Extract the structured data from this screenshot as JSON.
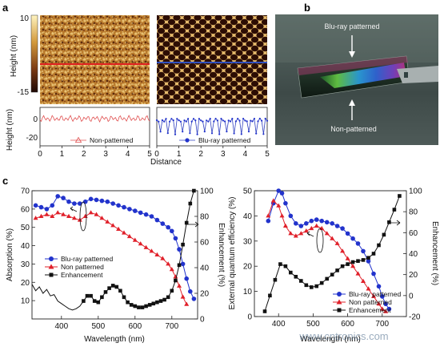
{
  "panel_labels": {
    "a": "a",
    "b": "b",
    "c": "c"
  },
  "colors": {
    "blue": "#2233cc",
    "red": "#e0202a",
    "black": "#111111",
    "profile_red": "#e05050"
  },
  "panel_a": {
    "colorbar": {
      "label": "Height (nm)",
      "max": "10",
      "min": "-15"
    },
    "profile_ylabel": "Height (nm)",
    "profile_yticks": [
      "0",
      "-20"
    ],
    "xticks": [
      "0",
      "1",
      "2",
      "3",
      "4",
      "5"
    ],
    "xlabel": "Distance",
    "legend_left": "Non-patterned",
    "legend_right": "Blu-ray patterned"
  },
  "panel_b": {
    "top_label": "Blu-ray patterned",
    "bottom_label": "Non-patterned"
  },
  "watermark": "www.cntronics.com",
  "chart_data": [
    {
      "type": "line",
      "xlabel": "Wavelength (nm)",
      "ylabel": "Absorption (%)",
      "y2label": "Enhancement (%)",
      "xlim": [
        320,
        770
      ],
      "ylim": [
        0,
        70
      ],
      "y2lim": [
        0,
        100
      ],
      "xticks": [
        400,
        500,
        600,
        700
      ],
      "yticks": [
        10,
        20,
        30,
        40,
        50,
        60,
        70
      ],
      "y2ticks": [
        0,
        20,
        40,
        60,
        80,
        100
      ],
      "legend_position": "center-left",
      "series": [
        {
          "name": "Blu-ray patterned",
          "axis": "left",
          "marker": "circle",
          "color": "#2233cc",
          "x": [
            330,
            345,
            360,
            375,
            390,
            405,
            420,
            435,
            450,
            465,
            480,
            495,
            510,
            525,
            540,
            555,
            570,
            585,
            600,
            615,
            630,
            645,
            660,
            675,
            690,
            700,
            710,
            720,
            730,
            740,
            750,
            760
          ],
          "y": [
            62,
            61,
            60,
            62,
            67,
            66,
            64,
            63,
            63,
            64,
            65.5,
            65,
            64.5,
            64,
            63,
            62,
            61,
            60,
            59,
            58,
            57,
            56,
            54,
            52,
            50,
            48,
            44,
            38,
            30,
            22,
            15,
            11
          ]
        },
        {
          "name": "Non patterned",
          "axis": "left",
          "marker": "triangle",
          "color": "#e0202a",
          "x": [
            330,
            345,
            360,
            375,
            390,
            405,
            420,
            435,
            450,
            465,
            480,
            495,
            510,
            525,
            540,
            555,
            570,
            585,
            600,
            615,
            630,
            645,
            660,
            675,
            690,
            700,
            710,
            720,
            730,
            740
          ],
          "y": [
            55,
            56,
            57,
            56,
            58,
            57,
            56,
            55,
            54,
            56,
            58,
            57,
            55,
            53,
            51,
            49,
            47,
            45,
            43,
            41,
            39,
            37,
            35,
            33,
            30,
            27,
            23,
            18,
            12,
            8
          ]
        },
        {
          "name": "Enhancement",
          "axis": "right",
          "marker": "square",
          "color": "#111111",
          "x": [
            320,
            330,
            340,
            350,
            360,
            370,
            380,
            390,
            400,
            410,
            420,
            430,
            440,
            450,
            460,
            470,
            480,
            490,
            500,
            510,
            520,
            530,
            540,
            550,
            560,
            570,
            580,
            590,
            600,
            610,
            620,
            630,
            640,
            650,
            660,
            670,
            680,
            690,
            700,
            710,
            720,
            730,
            740,
            750,
            760
          ],
          "y": [
            27,
            22,
            25,
            20,
            23,
            18,
            19,
            14,
            12,
            10,
            8,
            7,
            8,
            10,
            14,
            18,
            18,
            14,
            13,
            17,
            21,
            24,
            26,
            25,
            22,
            17,
            13,
            11,
            10,
            9,
            9,
            10,
            11,
            12,
            13,
            14,
            15,
            17,
            22,
            30,
            42,
            58,
            75,
            90,
            100
          ]
        }
      ]
    },
    {
      "type": "line",
      "xlabel": "Wavelength (nm)",
      "ylabel": "External quantum efficiency (%)",
      "y2label": "Enhancement (%)",
      "xlim": [
        330,
        770
      ],
      "ylim": [
        0,
        50
      ],
      "y2lim": [
        -20,
        100
      ],
      "xticks": [
        400,
        500,
        600,
        700
      ],
      "yticks": [
        0,
        10,
        20,
        30,
        40,
        50
      ],
      "y2ticks": [
        -20,
        0,
        20,
        40,
        60,
        80,
        100
      ],
      "legend_position": "bottom-right",
      "series": [
        {
          "name": "Blu-ray patterned",
          "axis": "left",
          "marker": "circle",
          "color": "#2233cc",
          "x": [
            370,
            385,
            400,
            410,
            420,
            435,
            450,
            465,
            480,
            495,
            510,
            525,
            540,
            555,
            570,
            585,
            600,
            615,
            630,
            645,
            660,
            675,
            690,
            700,
            710,
            720
          ],
          "y": [
            38,
            45,
            50,
            49,
            45,
            40,
            37,
            36,
            37,
            38,
            38.5,
            38,
            37.5,
            37,
            36,
            35,
            33,
            31,
            29,
            26,
            22,
            17,
            12,
            8,
            5,
            3
          ]
        },
        {
          "name": "Non patterned",
          "axis": "left",
          "marker": "triangle",
          "color": "#e0202a",
          "x": [
            370,
            385,
            400,
            410,
            420,
            435,
            450,
            465,
            480,
            495,
            510,
            525,
            540,
            555,
            570,
            585,
            600,
            615,
            630,
            645,
            660,
            675,
            690,
            700,
            710
          ],
          "y": [
            40,
            46,
            44,
            40,
            36,
            33,
            32,
            33,
            34,
            35,
            36,
            35,
            33,
            31,
            29,
            26,
            23,
            20,
            17,
            14,
            11,
            8,
            5,
            3,
            2
          ]
        },
        {
          "name": "Enhancement",
          "axis": "right",
          "marker": "square",
          "color": "#111111",
          "x": [
            360,
            375,
            390,
            405,
            420,
            435,
            450,
            465,
            480,
            495,
            510,
            525,
            540,
            555,
            570,
            585,
            600,
            615,
            630,
            645,
            660,
            675,
            690,
            705,
            720,
            735,
            750
          ],
          "y": [
            -15,
            0,
            15,
            30,
            28,
            22,
            18,
            14,
            10,
            8,
            9,
            12,
            16,
            20,
            24,
            28,
            30,
            32,
            33,
            34,
            36,
            40,
            48,
            58,
            70,
            82,
            95
          ]
        }
      ]
    }
  ]
}
